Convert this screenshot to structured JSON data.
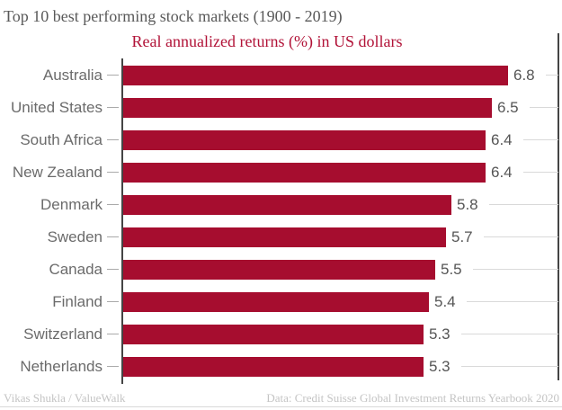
{
  "title": "Top 10 best performing stock markets (1900 - 2019)",
  "subtitle": "Real annualized returns (%) in US dollars",
  "footer": {
    "left": "Vikas Shukla / ValueWalk",
    "right": "Data: Credit Suisse Global Investment Returns Yearbook 2020"
  },
  "colors": {
    "bar": "#A60D2F",
    "subtitle": "#B11237",
    "title": "#595959",
    "category_label": "#6B6B6B",
    "value_label": "#555555",
    "axis_line": "#444444",
    "tick": "#AAAAAA",
    "leader_line": "#D9D9D9",
    "footer_text": "#C4C4C4"
  },
  "chart_data": {
    "type": "bar",
    "orientation": "horizontal",
    "title": "Top 10 best performing stock markets (1900 - 2019)",
    "subtitle": "Real annualized returns (%) in US dollars",
    "categories": [
      "Australia",
      "United States",
      "South Africa",
      "New Zealand",
      "Denmark",
      "Sweden",
      "Canada",
      "Finland",
      "Switzerland",
      "Netherlands"
    ],
    "values": [
      6.8,
      6.5,
      6.4,
      6.4,
      5.8,
      5.7,
      5.5,
      5.4,
      5.3,
      5.3
    ],
    "value_labels": [
      "6.8",
      "6.5",
      "6.4",
      "6.4",
      "5.8",
      "5.7",
      "5.5",
      "5.4",
      "5.3",
      "5.3"
    ],
    "xlabel": "",
    "ylabel": "",
    "xlim": [
      0,
      7.65
    ],
    "data_labels": true,
    "grid": false,
    "legend": false
  }
}
